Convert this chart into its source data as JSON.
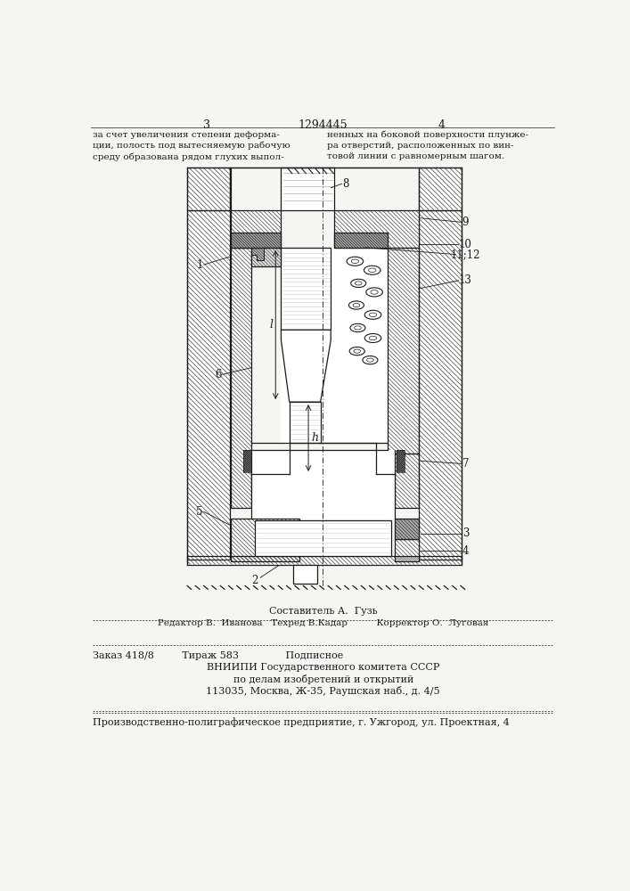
{
  "bg_color": "#f5f5f2",
  "lc": "#1a1a1a",
  "page_left": "3",
  "page_center": "1294445",
  "page_right": "4",
  "text_left": "за счет увеличения степени деформа-\nции, полость под вытесняемую рабочую\nсреду образована рядом глухих выпол-",
  "text_right": "ненных на боковой поверхности плунже-\nра отверстий, расположенных по вин-\nтовой линии с равномерным шагом.",
  "footer1": "Составитель А.  Гузь",
  "footer2": "Редактор В.  Иванова   Техред В.Кадар          Корректор О.  Луговая",
  "footer3": "Заказ 418/8         Тираж 583               Подписное",
  "footer4": "ВНИИПИ Государственного комитета СССР",
  "footer5": "по делам изобретений и открытий",
  "footer6": "113035, Москва, Ж-35, Раушская наб., д. 4/5",
  "footer7": "Производственно-полиграфическое предприятие, г. Ужгород, ул. Проектная, 4"
}
